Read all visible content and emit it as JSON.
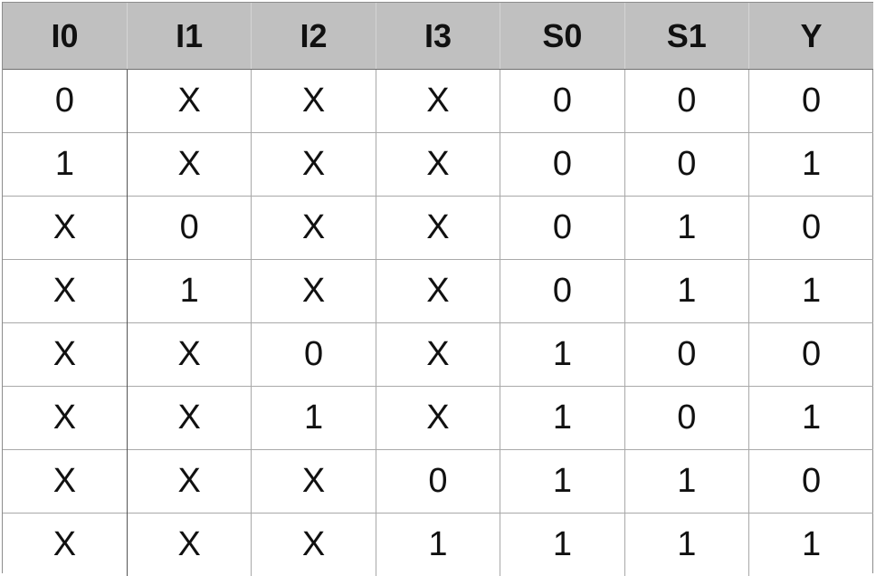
{
  "table": {
    "headers": [
      "I0",
      "I1",
      "I2",
      "I3",
      "S0",
      "S1",
      "Y"
    ],
    "rows": [
      [
        "0",
        "X",
        "X",
        "X",
        "0",
        "0",
        "0"
      ],
      [
        "1",
        "X",
        "X",
        "X",
        "0",
        "0",
        "1"
      ],
      [
        "X",
        "0",
        "X",
        "X",
        "0",
        "1",
        "0"
      ],
      [
        "X",
        "1",
        "X",
        "X",
        "0",
        "1",
        "1"
      ],
      [
        "X",
        "X",
        "0",
        "X",
        "1",
        "0",
        "0"
      ],
      [
        "X",
        "X",
        "1",
        "X",
        "1",
        "0",
        "1"
      ],
      [
        "X",
        "X",
        "X",
        "0",
        "1",
        "1",
        "0"
      ],
      [
        "X",
        "X",
        "X",
        "1",
        "1",
        "1",
        "1"
      ]
    ]
  }
}
